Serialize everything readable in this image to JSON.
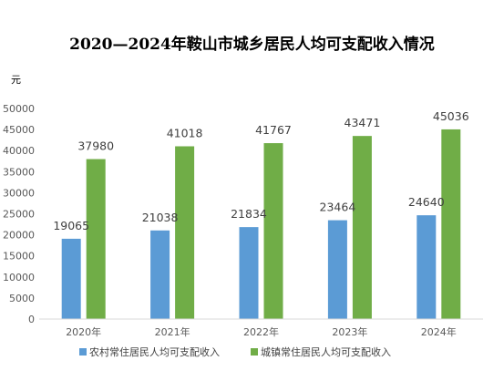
{
  "chart_data": {
    "type": "bar",
    "title": "2020—2024年鞍山市城乡居民人均可支配收入情况",
    "ylabel": "元",
    "categories": [
      "2020年",
      "2021年",
      "2022年",
      "2023年",
      "2024年"
    ],
    "series": [
      {
        "name": "农村常住居民人均可支配收入",
        "values": [
          19065,
          21038,
          21834,
          23464,
          24640
        ],
        "color": "#5b9bd5"
      },
      {
        "name": "城镇常住居民人均可支配收入",
        "values": [
          37980,
          41018,
          41767,
          43471,
          45036
        ],
        "color": "#70ad47"
      }
    ],
    "ylim": [
      0,
      50000
    ],
    "yticks": [
      0,
      5000,
      10000,
      15000,
      20000,
      25000,
      30000,
      35000,
      40000,
      45000,
      50000
    ],
    "grid": false,
    "data_labels": true,
    "legend": "bottom"
  }
}
